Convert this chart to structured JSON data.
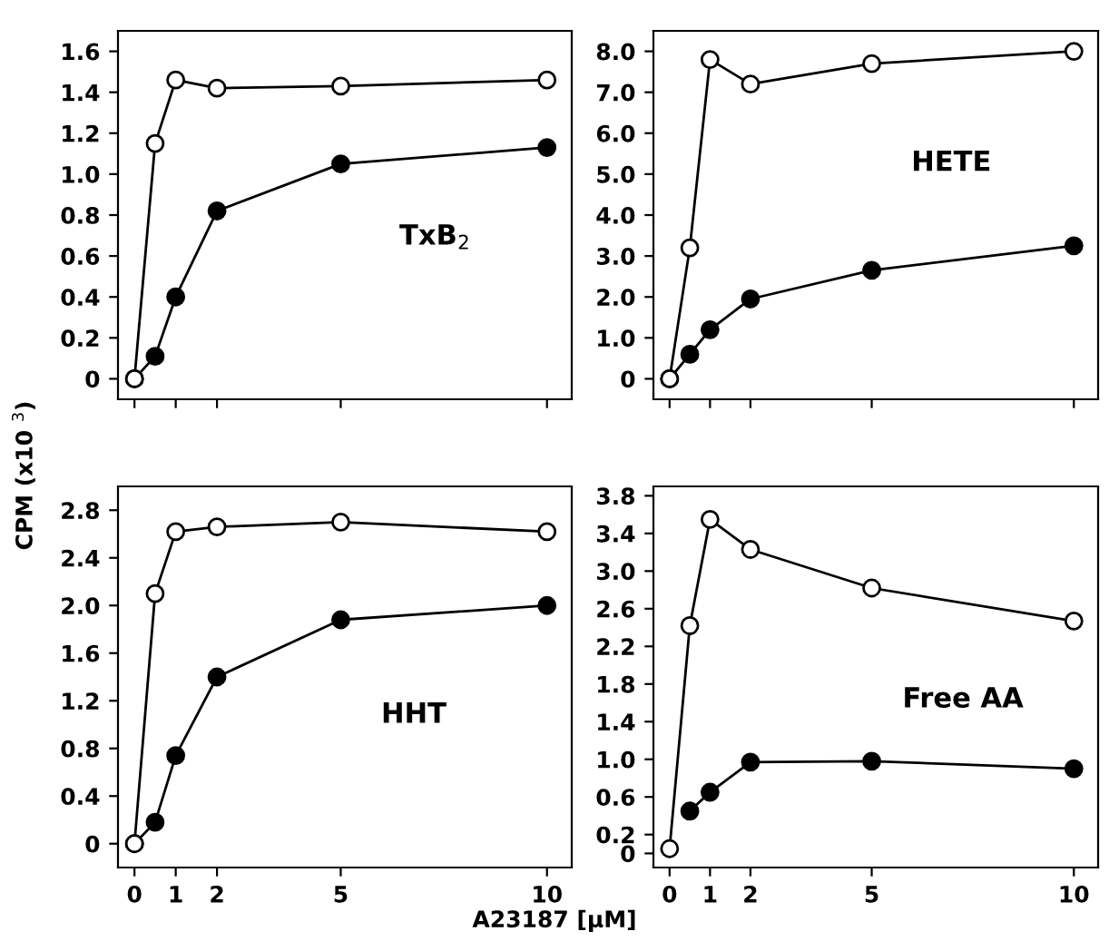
{
  "chart_data": [
    {
      "type": "line",
      "x": [
        0,
        0.5,
        1,
        2,
        5,
        10
      ],
      "xlim": [
        -0.4,
        10.6
      ],
      "xticks": [
        {
          "value": 0,
          "label": null
        },
        {
          "value": 1,
          "label": null
        },
        {
          "value": 2,
          "label": null
        },
        {
          "value": 5,
          "label": null
        },
        {
          "value": 10,
          "label": null
        }
      ],
      "ylim": [
        -0.1,
        1.7
      ],
      "yticks": [
        {
          "value": 0,
          "label": "0"
        },
        {
          "value": 0.2,
          "label": "0.2"
        },
        {
          "value": 0.4,
          "label": "0.4"
        },
        {
          "value": 0.6,
          "label": "0.6"
        },
        {
          "value": 0.8,
          "label": "0.8"
        },
        {
          "value": 1.0,
          "label": "1.0"
        },
        {
          "value": 1.2,
          "label": "1.2"
        },
        {
          "value": 1.4,
          "label": "1.4"
        },
        {
          "value": 1.6,
          "label": "1.6"
        }
      ],
      "tick_labels": "y",
      "marker": "circle",
      "grid": false,
      "legend": false,
      "annotations": [
        "TxB$_{2}$"
      ],
      "series": [
        {
          "color": "#ffffff",
          "values": [
            0,
            1.15,
            1.46,
            1.42,
            1.43,
            1.46
          ]
        },
        {
          "color": "#000000",
          "values": [
            0,
            0.11,
            0.4,
            0.82,
            1.05,
            1.13
          ]
        }
      ]
    },
    {
      "type": "line",
      "x": [
        0,
        0.5,
        1,
        2,
        5,
        10
      ],
      "xlim": [
        -0.4,
        10.6
      ],
      "xticks": [
        {
          "value": 0,
          "label": null
        },
        {
          "value": 1,
          "label": null
        },
        {
          "value": 2,
          "label": null
        },
        {
          "value": 5,
          "label": null
        },
        {
          "value": 10,
          "label": null
        }
      ],
      "ylim": [
        -0.5,
        8.5
      ],
      "yticks": [
        {
          "value": 0,
          "label": "0"
        },
        {
          "value": 1,
          "label": "1.0"
        },
        {
          "value": 2,
          "label": "2.0"
        },
        {
          "value": 3,
          "label": "3.0"
        },
        {
          "value": 4,
          "label": "4.0"
        },
        {
          "value": 5,
          "label": "5.0"
        },
        {
          "value": 6,
          "label": "6.0"
        },
        {
          "value": 7,
          "label": "7.0"
        },
        {
          "value": 8,
          "label": "8.0"
        }
      ],
      "tick_labels": "y",
      "marker": "circle",
      "grid": false,
      "legend": false,
      "annotations": [
        "HETE"
      ],
      "series": [
        {
          "color": "#ffffff",
          "values": [
            0,
            3.2,
            7.8,
            7.2,
            7.7,
            8.0
          ]
        },
        {
          "color": "#000000",
          "values": [
            0,
            0.6,
            1.2,
            1.95,
            2.65,
            3.25
          ]
        }
      ]
    },
    {
      "type": "line",
      "x": [
        0,
        0.5,
        1,
        2,
        5,
        10
      ],
      "xlim": [
        -0.4,
        10.6
      ],
      "xticks": [
        0,
        1,
        2,
        5,
        10
      ],
      "ylim": [
        -0.2,
        3.0
      ],
      "yticks": [
        {
          "value": 0,
          "label": "0"
        },
        {
          "value": 0.4,
          "label": "0.4"
        },
        {
          "value": 0.8,
          "label": "0.8"
        },
        {
          "value": 1.2,
          "label": "1.2"
        },
        {
          "value": 1.6,
          "label": "1.6"
        },
        {
          "value": 2.0,
          "label": "2.0"
        },
        {
          "value": 2.4,
          "label": "2.4"
        },
        {
          "value": 2.8,
          "label": "2.8"
        }
      ],
      "marker": "circle",
      "grid": false,
      "legend": false,
      "ylabel": "CPM (x10 $^{3}$)",
      "annotations": [
        "HHT"
      ],
      "series": [
        {
          "color": "#ffffff",
          "values": [
            0,
            2.1,
            2.62,
            2.66,
            2.7,
            2.62
          ]
        },
        {
          "color": "#000000",
          "values": [
            0,
            0.18,
            0.74,
            1.4,
            1.88,
            2.0
          ]
        }
      ]
    },
    {
      "type": "line",
      "x": [
        0,
        0.5,
        1,
        2,
        5,
        10
      ],
      "xlim": [
        -0.4,
        10.6
      ],
      "xticks": [
        0,
        1,
        2,
        5,
        10
      ],
      "ylim": [
        -0.15,
        3.9
      ],
      "yticks": [
        {
          "value": 0,
          "label": "0"
        },
        {
          "value": 0.2,
          "label": "0.2"
        },
        {
          "value": 0.6,
          "label": "0.6"
        },
        {
          "value": 1.0,
          "label": "1.0"
        },
        {
          "value": 1.4,
          "label": "1.4"
        },
        {
          "value": 1.8,
          "label": "1.8"
        },
        {
          "value": 2.2,
          "label": "2.2"
        },
        {
          "value": 2.6,
          "label": "2.6"
        },
        {
          "value": 3.0,
          "label": "3.0"
        },
        {
          "value": 3.4,
          "label": "3.4"
        },
        {
          "value": 3.8,
          "label": "3.8"
        }
      ],
      "marker": "circle",
      "grid": false,
      "legend": false,
      "xlabel": "A23187 [μM]",
      "annotations": [
        "Free AA"
      ],
      "series": [
        {
          "color": "#ffffff",
          "values": [
            0.05,
            2.42,
            3.55,
            3.23,
            2.82,
            2.47
          ]
        },
        {
          "color": "#000000",
          "values": [
            null,
            0.45,
            0.65,
            0.97,
            0.98,
            0.9
          ]
        }
      ]
    }
  ]
}
